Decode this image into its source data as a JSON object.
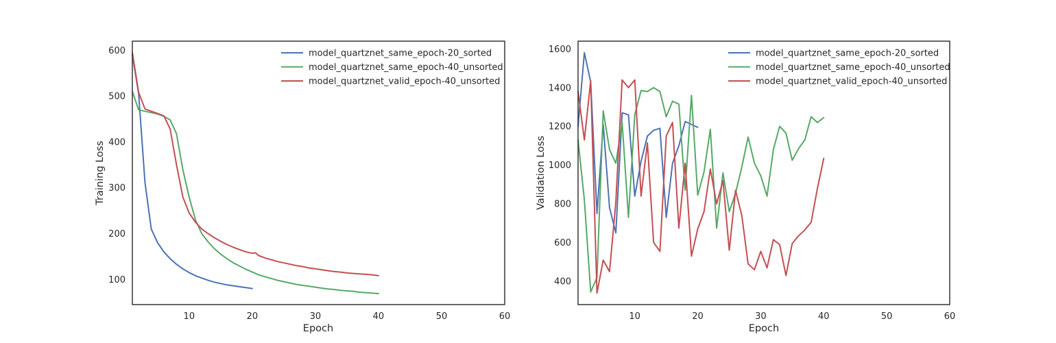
{
  "chart_data": [
    {
      "type": "line",
      "xlabel": "Epoch",
      "ylabel": "Training Loss",
      "xlim": [
        1,
        60
      ],
      "ylim": [
        45,
        620
      ],
      "xticks": [
        10,
        20,
        30,
        40,
        50,
        60
      ],
      "yticks": [
        100,
        200,
        300,
        400,
        500,
        600
      ],
      "grid": false,
      "legend_position": "top-right",
      "series": [
        {
          "name": "model_quartznet_same_epoch-20_sorted",
          "color": "#4c72b0",
          "x": [
            1,
            2,
            3,
            4,
            5,
            6,
            7,
            8,
            9,
            10,
            11,
            12,
            13,
            14,
            15,
            16,
            17,
            18,
            19,
            20
          ],
          "y": [
            590,
            505,
            312,
            210,
            180,
            160,
            145,
            133,
            123,
            115,
            108,
            103,
            98,
            94,
            91,
            88,
            86,
            84,
            82,
            80
          ]
        },
        {
          "name": "model_quartznet_same_epoch-40_unsorted",
          "color": "#55a868",
          "x": [
            1,
            2,
            3,
            4,
            5,
            6,
            7,
            8,
            9,
            10,
            11,
            12,
            13,
            14,
            15,
            16,
            17,
            18,
            19,
            20,
            21,
            22,
            23,
            24,
            25,
            26,
            27,
            28,
            29,
            30,
            31,
            32,
            33,
            34,
            35,
            36,
            37,
            38,
            39,
            40
          ],
          "y": [
            510,
            470,
            467,
            464,
            461,
            456,
            448,
            418,
            340,
            280,
            230,
            200,
            182,
            167,
            155,
            145,
            136,
            129,
            122,
            116,
            110,
            106,
            102,
            98,
            95,
            92,
            89,
            87,
            85,
            83,
            81,
            79,
            78,
            76,
            75,
            74,
            72,
            71,
            70,
            69
          ]
        },
        {
          "name": "model_quartznet_valid_epoch-40_unsorted",
          "color": "#c44e52",
          "x": [
            1,
            2,
            3,
            4,
            5,
            6,
            7,
            8,
            9,
            10,
            11,
            12,
            13,
            14,
            15,
            16,
            17,
            18,
            19,
            20,
            20.5,
            21,
            22,
            23,
            24,
            25,
            26,
            27,
            28,
            29,
            30,
            31,
            32,
            33,
            34,
            35,
            36,
            37,
            38,
            39,
            40
          ],
          "y": [
            595,
            508,
            472,
            467,
            462,
            457,
            428,
            350,
            280,
            245,
            225,
            210,
            200,
            191,
            183,
            176,
            170,
            165,
            160,
            157,
            158,
            152,
            147,
            143,
            139,
            136,
            133,
            130,
            128,
            125,
            123,
            121,
            119,
            117,
            116,
            114,
            113,
            112,
            111,
            110,
            108
          ]
        }
      ]
    },
    {
      "type": "line",
      "xlabel": "Epoch",
      "ylabel": "Validation Loss",
      "xlim": [
        1,
        60
      ],
      "ylim": [
        280,
        1640
      ],
      "xticks": [
        10,
        20,
        30,
        40,
        50,
        60
      ],
      "yticks": [
        400,
        600,
        800,
        1000,
        1200,
        1400,
        1600
      ],
      "grid": false,
      "legend_position": "top-right",
      "series": [
        {
          "name": "model_quartznet_same_epoch-20_sorted",
          "color": "#4c72b0",
          "x": [
            1,
            2,
            3,
            4,
            5,
            6,
            7,
            8,
            9,
            10,
            11,
            12,
            13,
            14,
            15,
            16,
            17,
            18,
            19,
            20
          ],
          "y": [
            1200,
            1580,
            1430,
            750,
            1210,
            780,
            650,
            1270,
            1260,
            840,
            1020,
            1150,
            1180,
            1190,
            730,
            1010,
            1100,
            1225,
            1210,
            1195
          ]
        },
        {
          "name": "model_quartznet_same_epoch-40_unsorted",
          "color": "#55a868",
          "x": [
            1,
            2,
            3,
            4,
            5,
            6,
            7,
            8,
            9,
            10,
            11,
            12,
            13,
            14,
            15,
            16,
            17,
            18,
            19,
            20,
            21,
            22,
            23,
            24,
            25,
            26,
            27,
            28,
            29,
            30,
            31,
            32,
            33,
            34,
            35,
            36,
            37,
            38,
            39,
            40
          ],
          "y": [
            1130,
            820,
            345,
            420,
            1280,
            1080,
            1010,
            1220,
            730,
            1260,
            1385,
            1380,
            1400,
            1380,
            1250,
            1330,
            1315,
            870,
            1360,
            845,
            965,
            1185,
            675,
            960,
            760,
            855,
            990,
            1145,
            1010,
            945,
            840,
            1080,
            1200,
            1165,
            1025,
            1085,
            1130,
            1250,
            1220,
            1245
          ]
        },
        {
          "name": "model_quartznet_valid_epoch-40_unsorted",
          "color": "#c44e52",
          "x": [
            1,
            2,
            3,
            4,
            5,
            6,
            7,
            8,
            9,
            10,
            11,
            12,
            13,
            14,
            15,
            16,
            17,
            18,
            19,
            20,
            21,
            22,
            23,
            24,
            25,
            26,
            27,
            28,
            29,
            30,
            31,
            32,
            33,
            34,
            35,
            36,
            37,
            38,
            39,
            40
          ],
          "y": [
            1380,
            1130,
            1435,
            340,
            510,
            450,
            810,
            1440,
            1400,
            1440,
            840,
            1115,
            600,
            555,
            1150,
            1220,
            675,
            1010,
            530,
            670,
            760,
            980,
            800,
            920,
            560,
            870,
            740,
            490,
            460,
            555,
            470,
            615,
            590,
            430,
            595,
            635,
            665,
            705,
            880,
            1035
          ]
        }
      ]
    }
  ]
}
